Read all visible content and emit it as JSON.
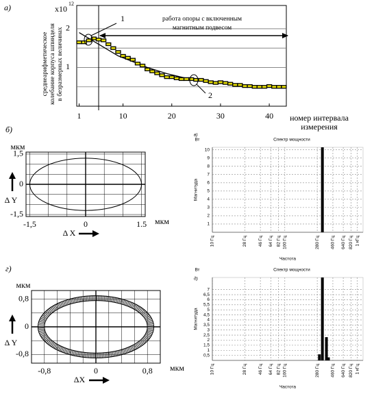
{
  "chart_data": [
    {
      "type": "line",
      "panel_label": "а)",
      "y_multiplier": {
        "base": "x10",
        "exponent": "12"
      },
      "ylabel": [
        "среднеарифметическое",
        "колебание корпуса шпинделя",
        "в безразмерных величинах"
      ],
      "xlabel": [
        "номер интервала",
        "измерения"
      ],
      "xlim": [
        0.5,
        43.5
      ],
      "ylim": [
        0,
        2.6
      ],
      "xticks": [
        1,
        10,
        20,
        30,
        40
      ],
      "yticks": [
        1,
        2
      ],
      "minor_yticks": [
        0.5,
        1.5
      ],
      "regime_start_x": 5,
      "regime_label": [
        "работа опоры с включенным",
        "магнитным подвесом"
      ],
      "callouts": [
        "1",
        "2"
      ],
      "series": [
        {
          "kind": "line",
          "color": "#000000",
          "x": [
            1,
            3,
            5,
            7,
            9,
            11,
            13,
            15,
            17,
            19,
            21,
            23,
            25,
            27,
            29,
            31,
            33,
            35,
            37,
            39,
            41,
            43
          ],
          "values": [
            1.9,
            1.75,
            1.6,
            1.45,
            1.3,
            1.2,
            1.1,
            1.0,
            0.92,
            0.84,
            0.78,
            0.72,
            0.68,
            0.64,
            0.61,
            0.58,
            0.56,
            0.54,
            0.53,
            0.52,
            0.51,
            0.5
          ]
        },
        {
          "kind": "points",
          "color": "#000000",
          "fill": "#e8e000",
          "x": [
            1,
            2,
            3,
            4,
            5,
            6,
            7,
            8,
            9,
            10,
            11,
            12,
            13,
            14,
            15,
            16,
            17,
            18,
            19,
            20,
            21,
            22,
            23,
            24,
            25,
            26,
            27,
            28,
            29,
            30,
            31,
            32,
            33,
            34,
            35,
            36,
            37,
            38,
            39,
            40,
            41,
            42,
            43
          ],
          "values": [
            1.65,
            1.65,
            1.7,
            1.75,
            1.72,
            1.7,
            1.6,
            1.5,
            1.4,
            1.3,
            1.25,
            1.2,
            1.1,
            1.05,
            0.95,
            0.9,
            0.85,
            0.8,
            0.75,
            0.75,
            0.72,
            0.7,
            0.7,
            0.7,
            0.68,
            0.68,
            0.65,
            0.62,
            0.6,
            0.62,
            0.6,
            0.58,
            0.55,
            0.55,
            0.52,
            0.52,
            0.5,
            0.5,
            0.5,
            0.52,
            0.5,
            0.5,
            0.5
          ]
        }
      ]
    },
    {
      "type": "ellipse",
      "panel_label": "б)",
      "xlim": [
        -1.6,
        1.6
      ],
      "ylim": [
        -1.6,
        1.6
      ],
      "xticks": [
        {
          "value": -1.5,
          "label": "-1,5"
        },
        0,
        1.5
      ],
      "yticks": [
        {
          "value": 1.5,
          "label": "1,5"
        },
        0,
        {
          "value": -1.5,
          "label": "-1,5"
        }
      ],
      "x_grid": [
        -1.5,
        -1,
        -0.5,
        0,
        0.5,
        1,
        1.5
      ],
      "y_grid": [
        -1.5,
        -1,
        -0.5,
        0,
        0.5,
        1,
        1.5
      ],
      "x_unit": "мкм",
      "y_unit": "мкм",
      "xlabel": "Δ X",
      "ylabel": "Δ Y",
      "series": [
        {
          "rx": 1.5,
          "ry": 1.3,
          "color": "#000000"
        }
      ]
    },
    {
      "type": "bar",
      "panel_label": "в)",
      "title": "Спектр мощности",
      "y_unit": "Вт",
      "ylabel": "Магнитуда",
      "xlabel": "Частота",
      "xscale": "log",
      "xlim": [
        10,
        1200
      ],
      "ylim": [
        0,
        10.3
      ],
      "xticks": [
        {
          "value": 10,
          "label": "10 Гц"
        },
        {
          "value": 28,
          "label": "28 Гц"
        },
        {
          "value": 46,
          "label": "46 Гц"
        },
        {
          "value": 64,
          "label": "64 Гц"
        },
        {
          "value": 82,
          "label": "82 Гц"
        },
        {
          "value": 100,
          "label": "100 Гц"
        },
        {
          "value": 280,
          "label": "280 Гц"
        },
        {
          "value": 460,
          "label": "460 Гц"
        },
        {
          "value": 640,
          "label": "640 Гц"
        },
        {
          "value": 820,
          "label": "820 Гц"
        },
        {
          "value": 1000,
          "label": "1 кГц"
        }
      ],
      "yticks": [
        1,
        2,
        3,
        4,
        5,
        6,
        7,
        8,
        9,
        10
      ],
      "grid": "dashed",
      "color": "#000000",
      "x": [
        330
      ],
      "values": [
        10.3
      ]
    },
    {
      "type": "ellipse",
      "panel_label": "г)",
      "xlim": [
        -1,
        1
      ],
      "ylim": [
        -1.05,
        1.05
      ],
      "xticks": [
        {
          "value": -0.8,
          "label": "-0,8"
        },
        0,
        {
          "value": 0.8,
          "label": "0,8"
        }
      ],
      "yticks": [
        {
          "value": 0.8,
          "label": "0,8"
        },
        0,
        {
          "value": -0.8,
          "label": "-0,8"
        }
      ],
      "x_grid": [
        -0.8,
        -0.6,
        -0.4,
        -0.2,
        0,
        0.2,
        0.4,
        0.6,
        0.8
      ],
      "y_grid": [
        -0.8,
        -0.4,
        0,
        0.4,
        0.8
      ],
      "x_unit": "мкм",
      "y_unit": "мкм",
      "xlabel": "ΔX",
      "ylabel": "Δ Y",
      "ring": true,
      "series": [
        {
          "rx": 0.9,
          "ry": 0.9,
          "color": "#000000"
        },
        {
          "rx": 0.8,
          "ry": 0.76,
          "color": "#000000"
        }
      ]
    },
    {
      "type": "bar",
      "panel_label": "д)",
      "title": "Спектр мощности",
      "y_unit": "Вт",
      "ylabel": "Магнитуда",
      "xlabel": "Частота",
      "xscale": "log",
      "xlim": [
        10,
        1200
      ],
      "ylim": [
        0,
        8.2
      ],
      "xticks": [
        {
          "value": 10,
          "label": "10 Гц"
        },
        {
          "value": 28,
          "label": "28 Гц"
        },
        {
          "value": 46,
          "label": "46 Гц"
        },
        {
          "value": 64,
          "label": "64 Гц"
        },
        {
          "value": 82,
          "label": "82 Гц"
        },
        {
          "value": 100,
          "label": "100 Гц"
        },
        {
          "value": 280,
          "label": "280 Гц"
        },
        {
          "value": 460,
          "label": "460 Гц"
        },
        {
          "value": 640,
          "label": "640 Гц"
        },
        {
          "value": 820,
          "label": "820 Гц"
        },
        {
          "value": 1000,
          "label": "1 кГц"
        }
      ],
      "yticks": [
        {
          "value": 0.5,
          "label": "0,5"
        },
        1,
        {
          "value": 1.5,
          "label": "1,5"
        },
        2,
        {
          "value": 2.5,
          "label": "2,5"
        },
        3,
        {
          "value": 3.5,
          "label": "3,5"
        },
        4,
        {
          "value": 4.5,
          "label": "4,5"
        },
        5,
        {
          "value": 5.5,
          "label": "5,5"
        },
        6,
        {
          "value": 6.5,
          "label": "6,5"
        },
        7
      ],
      "grid": "dashed",
      "color": "#000000",
      "x": [
        300,
        330,
        375,
        400
      ],
      "values": [
        0.6,
        8.2,
        2.3,
        0.3
      ]
    }
  ]
}
